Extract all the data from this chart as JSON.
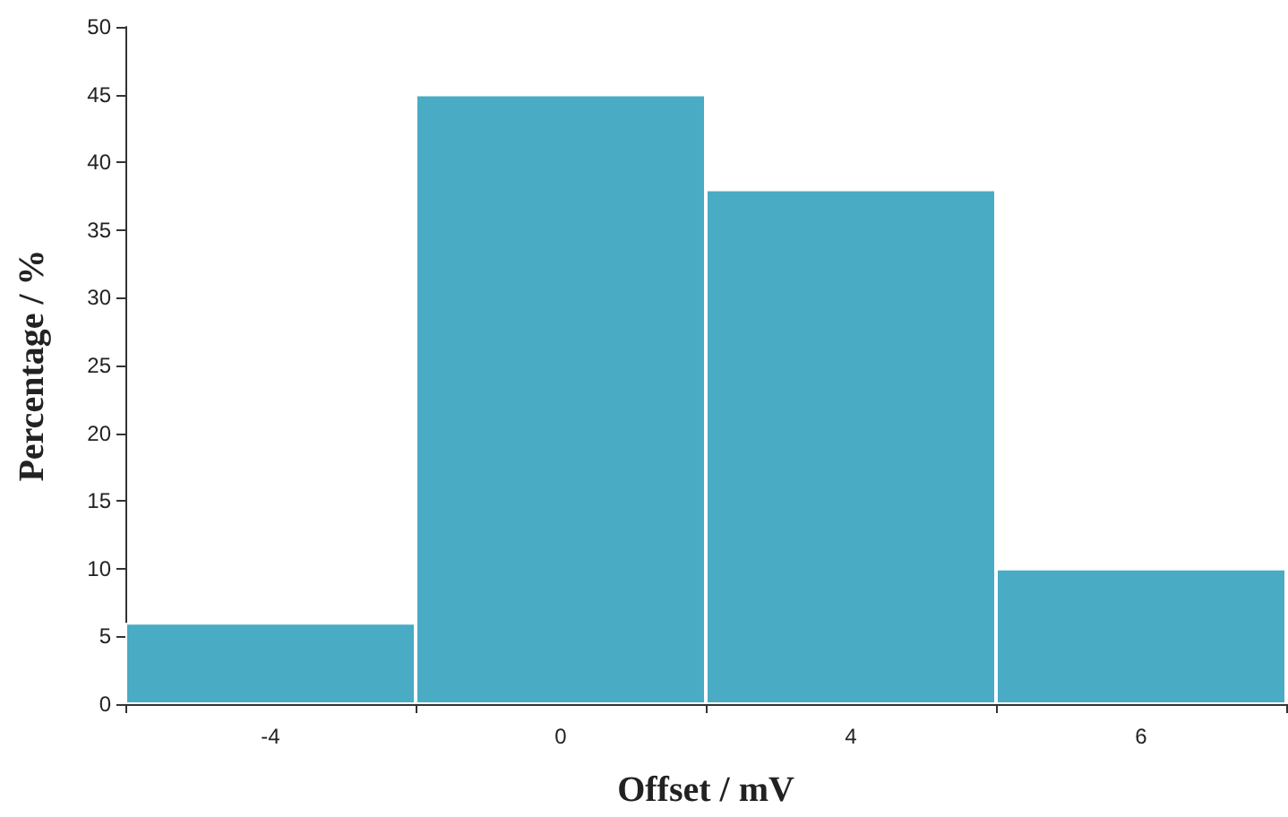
{
  "chart_data": {
    "type": "bar",
    "xlabel": "Offset / mV",
    "ylabel": "Percentage / %",
    "categories": [
      "-4",
      "0",
      "4",
      "6"
    ],
    "values": [
      6,
      45,
      38,
      10
    ],
    "color": "#4aabc4",
    "ylim": [
      0,
      50
    ],
    "yticks": [
      0,
      5,
      10,
      15,
      20,
      25,
      30,
      35,
      40,
      45,
      50
    ],
    "grid": false
  }
}
